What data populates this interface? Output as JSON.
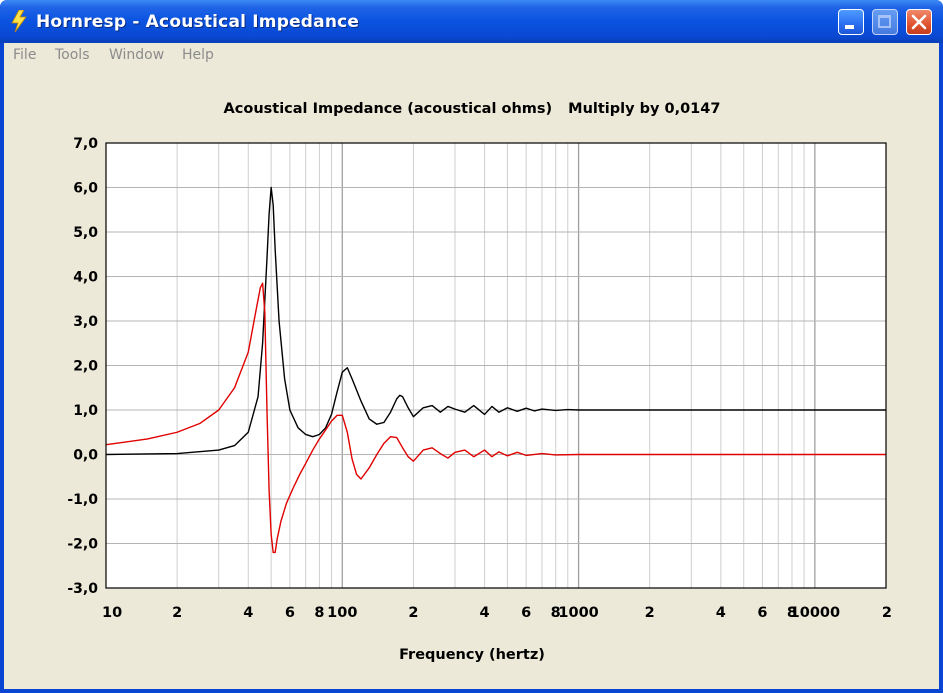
{
  "window": {
    "title": "Hornresp - Acoustical Impedance",
    "controls": {
      "minimize": "minimize",
      "maximize": "maximize",
      "close": "close"
    }
  },
  "menu": {
    "items": [
      {
        "label": "File"
      },
      {
        "label": "Tools"
      },
      {
        "label": "Window"
      },
      {
        "label": "Help"
      }
    ]
  },
  "colors": {
    "series_black": "#000000",
    "series_red": "#e00000",
    "grid": "#b4b4b4",
    "plot_bg": "#ffffff",
    "window_bg": "#ece9d8"
  },
  "chart_data": {
    "type": "line",
    "title": "Acoustical Impedance (acoustical ohms)",
    "multiplier_text": "Multiply by 0,0147",
    "xlabel": "Frequency (hertz)",
    "xscale": "log",
    "xlim": [
      10,
      20000
    ],
    "ylim": [
      -3.0,
      7.0
    ],
    "y_ticks": [
      {
        "value": 7,
        "label": "7,0"
      },
      {
        "value": 6,
        "label": "6,0"
      },
      {
        "value": 5,
        "label": "5,0"
      },
      {
        "value": 4,
        "label": "4,0"
      },
      {
        "value": 3,
        "label": "3,0"
      },
      {
        "value": 2,
        "label": "2,0"
      },
      {
        "value": 1,
        "label": "1,0"
      },
      {
        "value": 0,
        "label": "0,0"
      },
      {
        "value": -1,
        "label": "-1,0"
      },
      {
        "value": -2,
        "label": "-2,0"
      },
      {
        "value": -3,
        "label": "-3,0"
      }
    ],
    "x_ticks": [
      {
        "value": 10,
        "label": "10"
      },
      {
        "value": 20,
        "label": "2"
      },
      {
        "value": 40,
        "label": "4"
      },
      {
        "value": 60,
        "label": "6"
      },
      {
        "value": 80,
        "label": "8"
      },
      {
        "value": 100,
        "label": "100"
      },
      {
        "value": 200,
        "label": "2"
      },
      {
        "value": 400,
        "label": "4"
      },
      {
        "value": 600,
        "label": "6"
      },
      {
        "value": 800,
        "label": "8"
      },
      {
        "value": 1000,
        "label": "1000"
      },
      {
        "value": 2000,
        "label": "2"
      },
      {
        "value": 4000,
        "label": "4"
      },
      {
        "value": 6000,
        "label": "6"
      },
      {
        "value": 8000,
        "label": "8"
      },
      {
        "value": 10000,
        "label": "10000"
      },
      {
        "value": 20000,
        "label": "2"
      }
    ],
    "grid": true,
    "series": [
      {
        "color": "#000000",
        "x": [
          10,
          20,
          30,
          35,
          40,
          44,
          46,
          48,
          49,
          50,
          51,
          52,
          54,
          57,
          60,
          65,
          70,
          75,
          80,
          85,
          90,
          95,
          100,
          105,
          110,
          120,
          130,
          140,
          150,
          160,
          170,
          175,
          180,
          190,
          200,
          220,
          240,
          260,
          280,
          300,
          330,
          360,
          400,
          430,
          460,
          500,
          550,
          600,
          650,
          700,
          800,
          900,
          1000,
          1200,
          1500,
          2000,
          3000,
          5000,
          10000,
          20000
        ],
        "y": [
          0.0,
          0.02,
          0.1,
          0.2,
          0.5,
          1.3,
          2.5,
          4.4,
          5.4,
          6.0,
          5.6,
          4.6,
          3.0,
          1.7,
          1.0,
          0.6,
          0.45,
          0.4,
          0.45,
          0.6,
          0.9,
          1.4,
          1.85,
          1.95,
          1.7,
          1.2,
          0.8,
          0.68,
          0.72,
          0.95,
          1.25,
          1.33,
          1.3,
          1.05,
          0.85,
          1.05,
          1.1,
          0.95,
          1.08,
          1.02,
          0.95,
          1.1,
          0.9,
          1.08,
          0.95,
          1.05,
          0.97,
          1.04,
          0.98,
          1.02,
          0.99,
          1.01,
          1.0,
          1.0,
          1.0,
          1.0,
          1.0,
          1.0,
          1.0,
          1.0
        ]
      },
      {
        "color": "#e00000",
        "x": [
          10,
          15,
          20,
          25,
          30,
          35,
          40,
          43,
          45,
          46,
          47,
          48,
          49,
          50,
          51,
          52,
          53,
          55,
          58,
          62,
          66,
          70,
          75,
          80,
          85,
          90,
          95,
          100,
          105,
          110,
          115,
          120,
          130,
          140,
          150,
          160,
          170,
          180,
          190,
          200,
          220,
          240,
          260,
          280,
          300,
          330,
          360,
          400,
          430,
          460,
          500,
          550,
          600,
          700,
          800,
          1000,
          1500,
          2000,
          5000,
          10000,
          20000
        ],
        "y": [
          0.22,
          0.35,
          0.5,
          0.7,
          1.0,
          1.5,
          2.3,
          3.2,
          3.75,
          3.85,
          3.2,
          1.0,
          -0.8,
          -1.8,
          -2.2,
          -2.2,
          -1.9,
          -1.5,
          -1.1,
          -0.75,
          -0.45,
          -0.2,
          0.1,
          0.35,
          0.55,
          0.75,
          0.88,
          0.88,
          0.5,
          -0.1,
          -0.45,
          -0.55,
          -0.3,
          0.0,
          0.25,
          0.4,
          0.38,
          0.15,
          -0.05,
          -0.15,
          0.1,
          0.15,
          0.02,
          -0.08,
          0.05,
          0.1,
          -0.05,
          0.1,
          -0.05,
          0.06,
          -0.03,
          0.05,
          -0.02,
          0.02,
          -0.01,
          0.0,
          0.0,
          0.0,
          0.0,
          0.0,
          0.0
        ]
      }
    ]
  }
}
